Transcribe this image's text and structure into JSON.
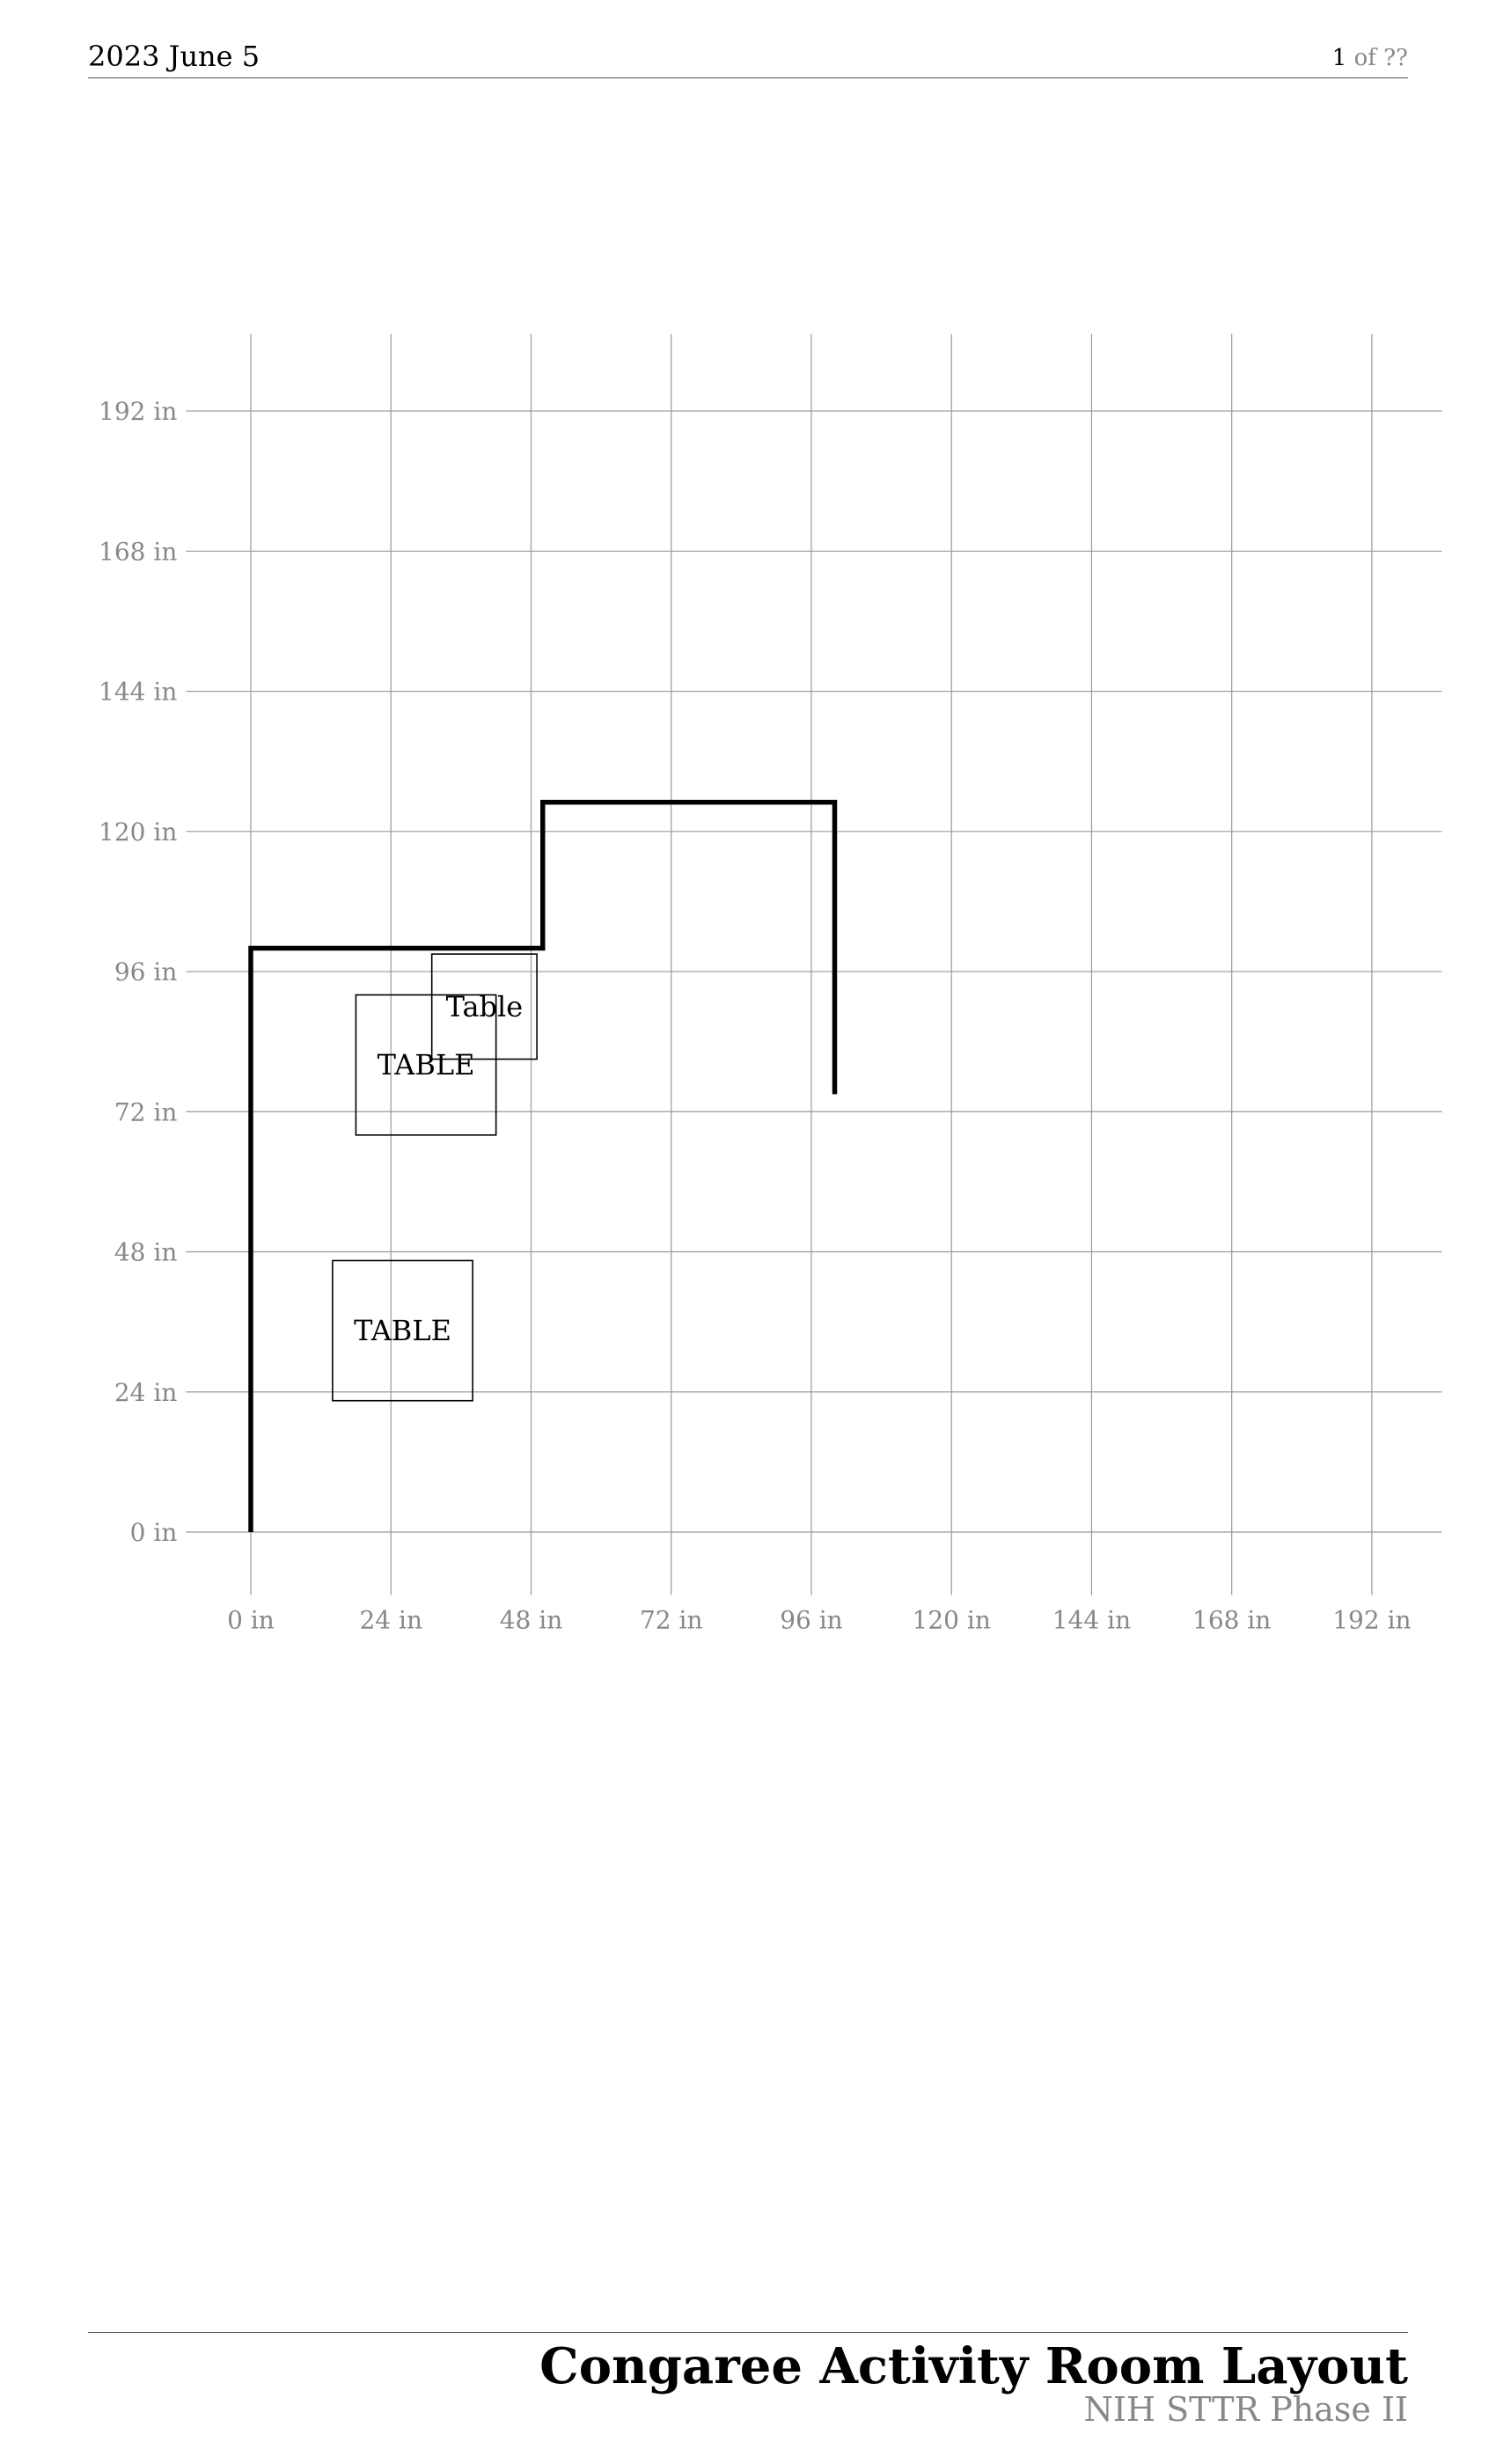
{
  "header": {
    "date": "2023 June 5",
    "page_number": "1",
    "page_of": "of",
    "page_total": "??"
  },
  "footer": {
    "title": "Congaree Activity Room Layout",
    "subtitle": "NIH STTR Phase II"
  },
  "chart_data": {
    "type": "floor-plan",
    "units": "in",
    "grid": true,
    "x_ticks": [
      "0 in",
      "24 in",
      "48 in",
      "72 in",
      "96 in",
      "120 in",
      "144 in",
      "168 in",
      "192 in"
    ],
    "y_ticks": [
      "0 in",
      "24 in",
      "48 in",
      "72 in",
      "96 in",
      "120 in",
      "144 in",
      "168 in",
      "192 in"
    ],
    "x_tick_values": [
      0,
      24,
      48,
      72,
      96,
      120,
      144,
      168,
      192
    ],
    "y_tick_values": [
      0,
      24,
      48,
      72,
      96,
      120,
      144,
      168,
      192
    ],
    "xlim": [
      -12,
      204
    ],
    "ylim": [
      -12,
      204
    ],
    "walls": [
      [
        0,
        0
      ],
      [
        0,
        100
      ],
      [
        50,
        100
      ],
      [
        50,
        125
      ],
      [
        100,
        125
      ],
      [
        100,
        75
      ]
    ],
    "tables": [
      {
        "label": "TABLE",
        "x": 14,
        "y": 22.5,
        "w": 24,
        "h": 24
      },
      {
        "label": "TABLE",
        "x": 18,
        "y": 68,
        "w": 24,
        "h": 24
      },
      {
        "label": "Table",
        "x": 31,
        "y": 81,
        "w": 18,
        "h": 18
      }
    ],
    "colors": {
      "grid": "#999999",
      "tick_label": "#888888",
      "wall": "#000000",
      "table": "#000000"
    }
  }
}
